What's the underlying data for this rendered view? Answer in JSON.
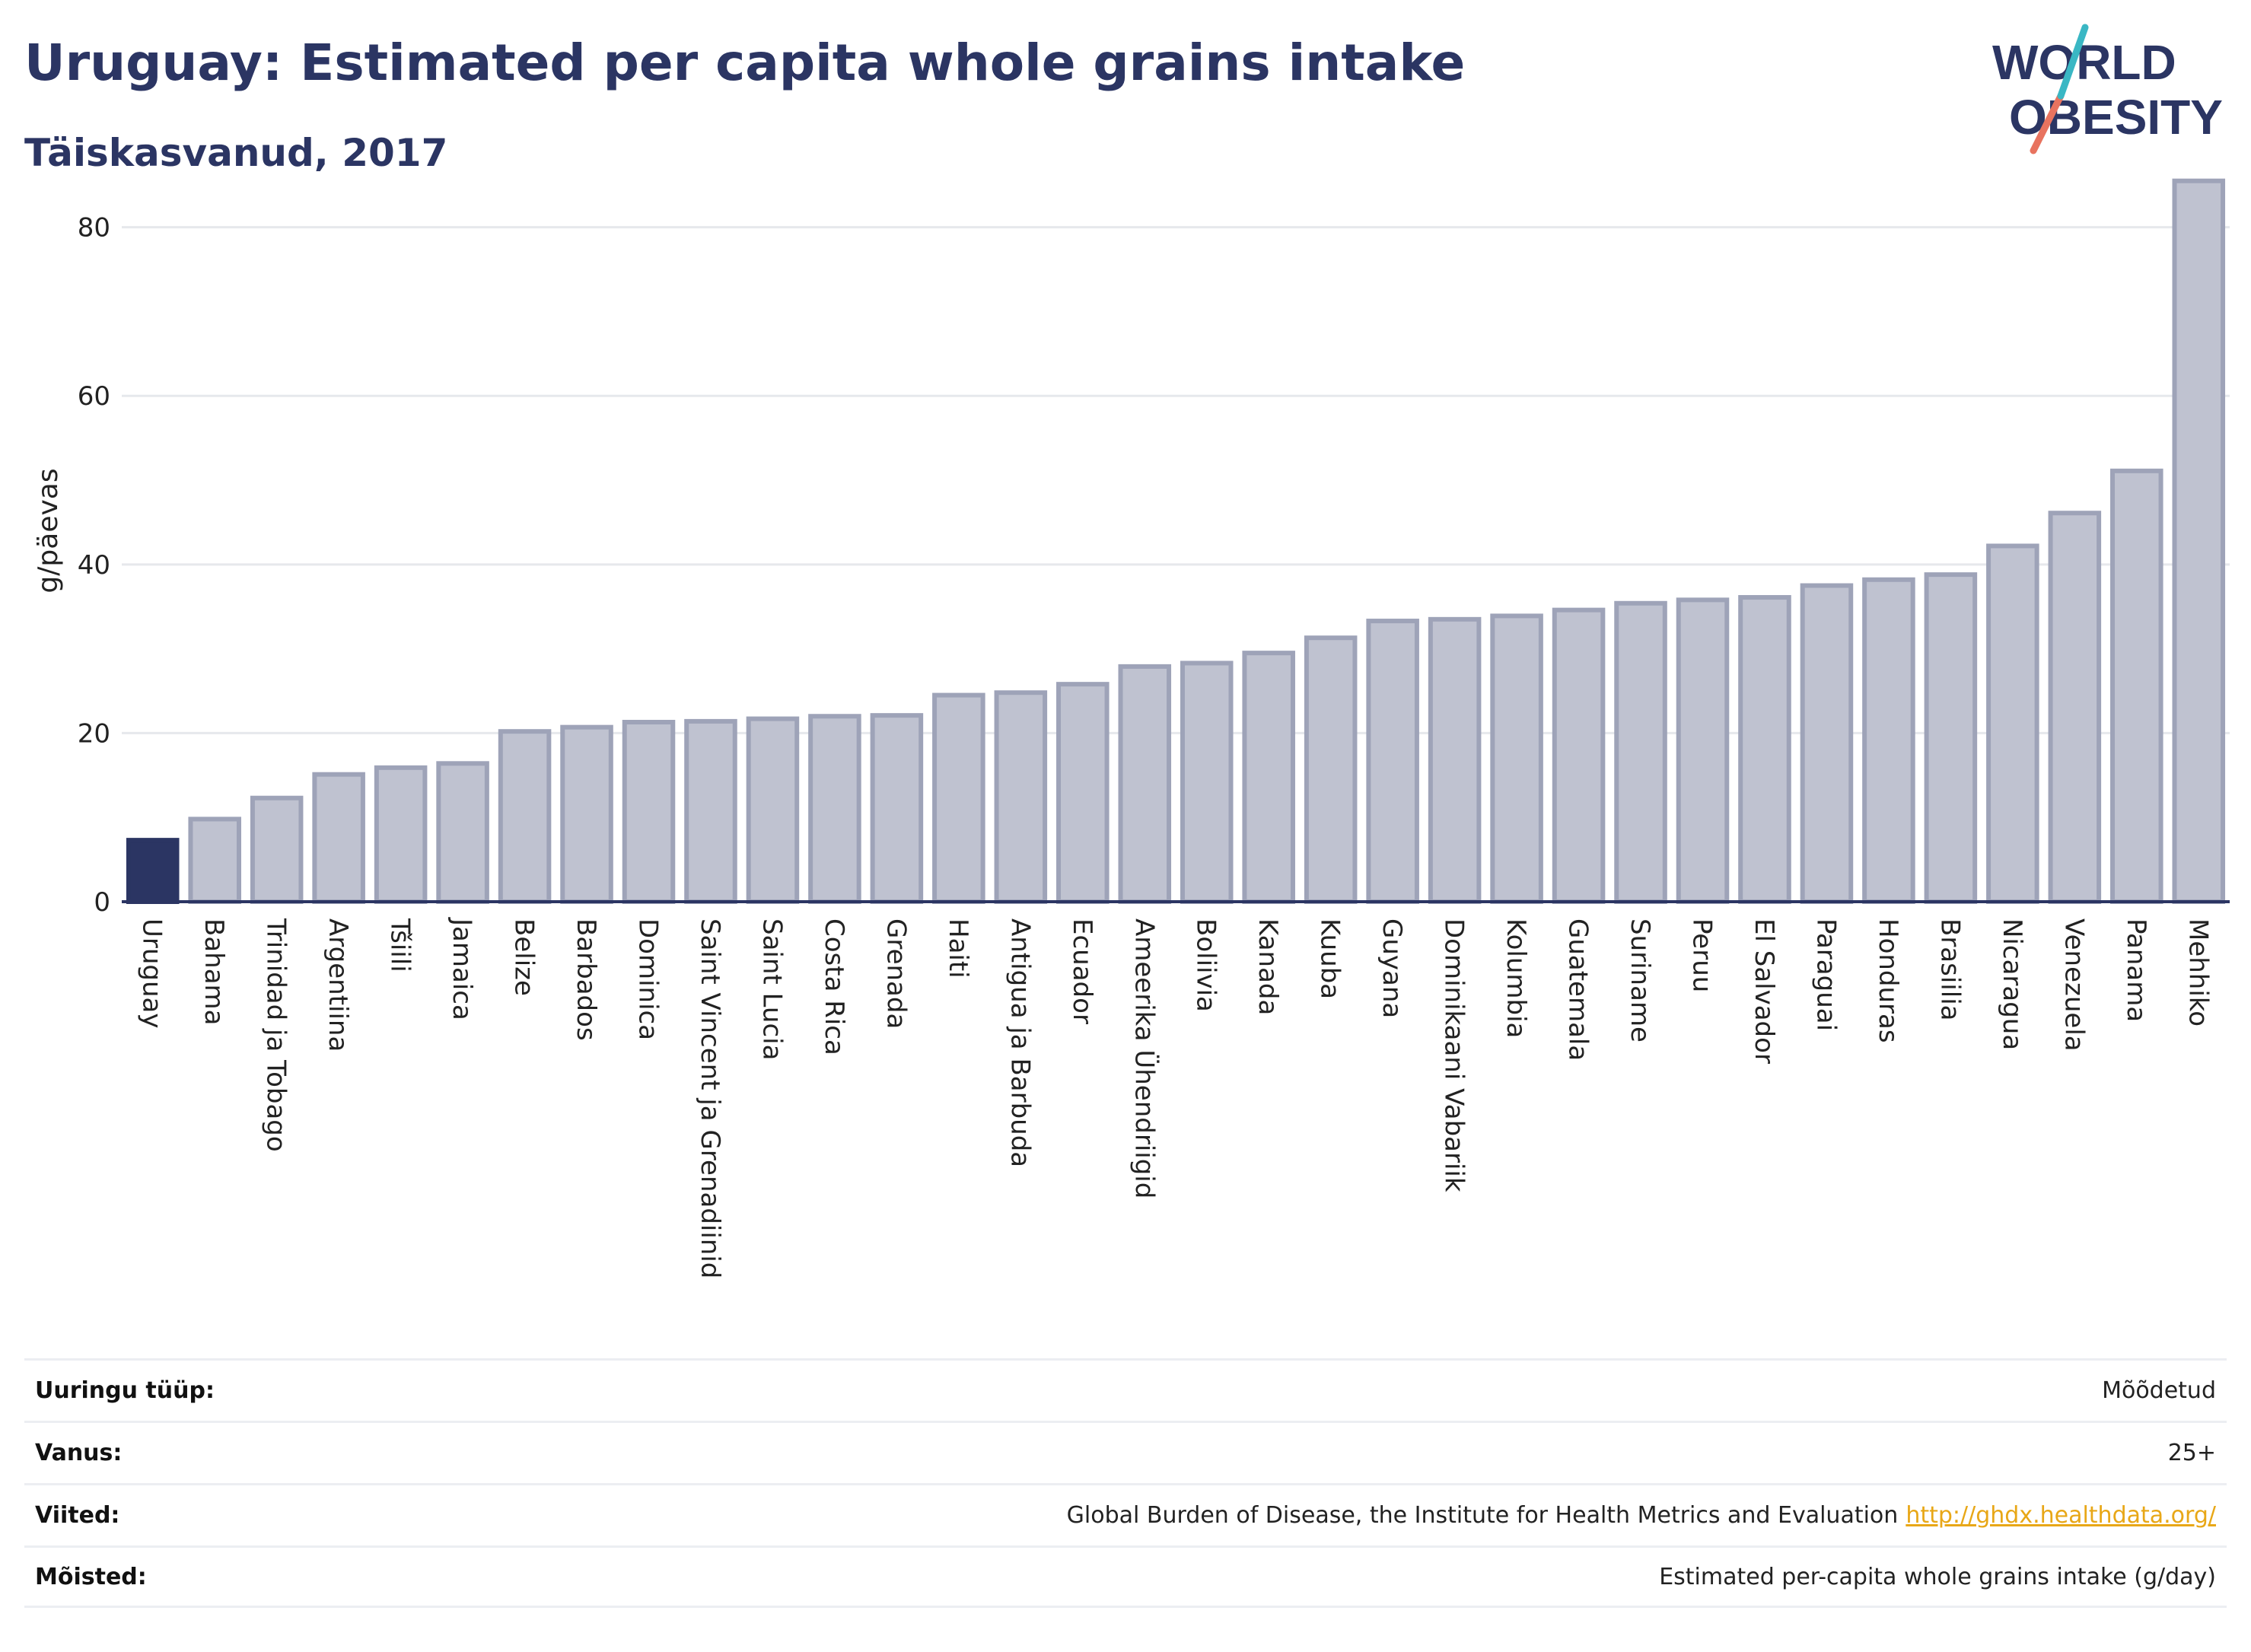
{
  "header": {
    "title": "Uruguay: Estimated per capita whole grains intake",
    "subtitle": "Täiskasvanud, 2017"
  },
  "logo": {
    "line1": "WORLD",
    "line2": "OBESITY"
  },
  "colors": {
    "highlight": "#2b3563",
    "bar_fill": "#bfc2d0",
    "bar_stroke": "#9ea3b8",
    "grid": "#e6e8ec",
    "logo_text": "#2b3563",
    "logo_teal": "#3ab7c4",
    "logo_coral": "#e8735f",
    "link": "#e8a717"
  },
  "chart_data": {
    "type": "bar",
    "title": "Uruguay: Estimated per capita whole grains intake",
    "subtitle": "Täiskasvanud, 2017",
    "ylabel": "g/päevas",
    "xlabel": "",
    "ylim": [
      0,
      88
    ],
    "yticks": [
      0,
      20,
      40,
      60,
      80
    ],
    "grid": true,
    "highlight_category": "Uruguay",
    "categories": [
      "Uruguay",
      "Bahama",
      "Trinidad ja Tobago",
      "Argentiina",
      "Tšiili",
      "Jamaica",
      "Belize",
      "Barbados",
      "Dominica",
      "Saint Vincent ja Grenadiinid",
      "Saint Lucia",
      "Costa Rica",
      "Grenada",
      "Haiti",
      "Antigua ja Barbuda",
      "Ecuador",
      "Ameerika Ühendriigid",
      "Boliivia",
      "Kanada",
      "Kuuba",
      "Guyana",
      "Dominikaani Vabariik",
      "Kolumbia",
      "Guatemala",
      "Suriname",
      "Peruu",
      "El Salvador",
      "Paraguai",
      "Honduras",
      "Brasiilia",
      "Nicaragua",
      "Venezuela",
      "Panama",
      "Mehhiko"
    ],
    "values": [
      7.3,
      9.8,
      12.3,
      15.1,
      15.9,
      16.4,
      20.2,
      20.7,
      21.3,
      21.4,
      21.7,
      22.0,
      22.1,
      24.5,
      24.8,
      25.8,
      27.9,
      28.3,
      29.5,
      31.3,
      33.3,
      33.5,
      33.9,
      34.6,
      35.4,
      35.8,
      36.1,
      37.5,
      38.2,
      38.8,
      42.2,
      46.1,
      51.1,
      85.5
    ]
  },
  "meta": {
    "rows": [
      {
        "label": "Uuringu tüüp:",
        "value": "Mõõdetud"
      },
      {
        "label": "Vanus:",
        "value": "25+"
      },
      {
        "label": "Viited:",
        "value": "Global Burden of Disease, the Institute for Health Metrics and Evaluation",
        "link": "http://ghdx.healthdata.org/"
      },
      {
        "label": "Mõisted:",
        "value": "Estimated per-capita whole grains intake (g/day)"
      }
    ]
  }
}
